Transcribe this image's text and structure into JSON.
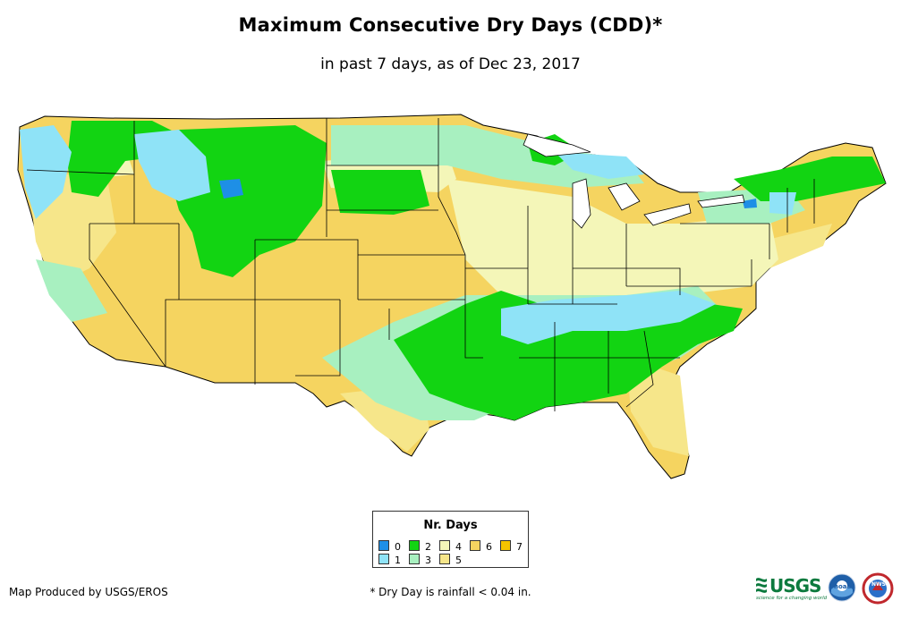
{
  "title": "Maximum Consecutive Dry Days (CDD)*",
  "subtitle": "in past 7 days, as of Dec 23, 2017",
  "legend": {
    "title": "Nr. Days",
    "items": [
      {
        "label": "0",
        "color": "#1e8fe6"
      },
      {
        "label": "1",
        "color": "#8fe3f7"
      },
      {
        "label": "2",
        "color": "#12d412"
      },
      {
        "label": "3",
        "color": "#a8f0c0"
      },
      {
        "label": "4",
        "color": "#f4f6b8"
      },
      {
        "label": "5",
        "color": "#f6e68a"
      },
      {
        "label": "6",
        "color": "#f5d460"
      },
      {
        "label": "7",
        "color": "#f5c300"
      }
    ]
  },
  "credit": "Map Produced by USGS/EROS",
  "footnote": "* Dry Day is rainfall < 0.04 in.",
  "logos": {
    "usgs": "USGS",
    "usgs_tagline": "science for a changing world",
    "noaa": "noaa",
    "nws": "NWS"
  }
}
